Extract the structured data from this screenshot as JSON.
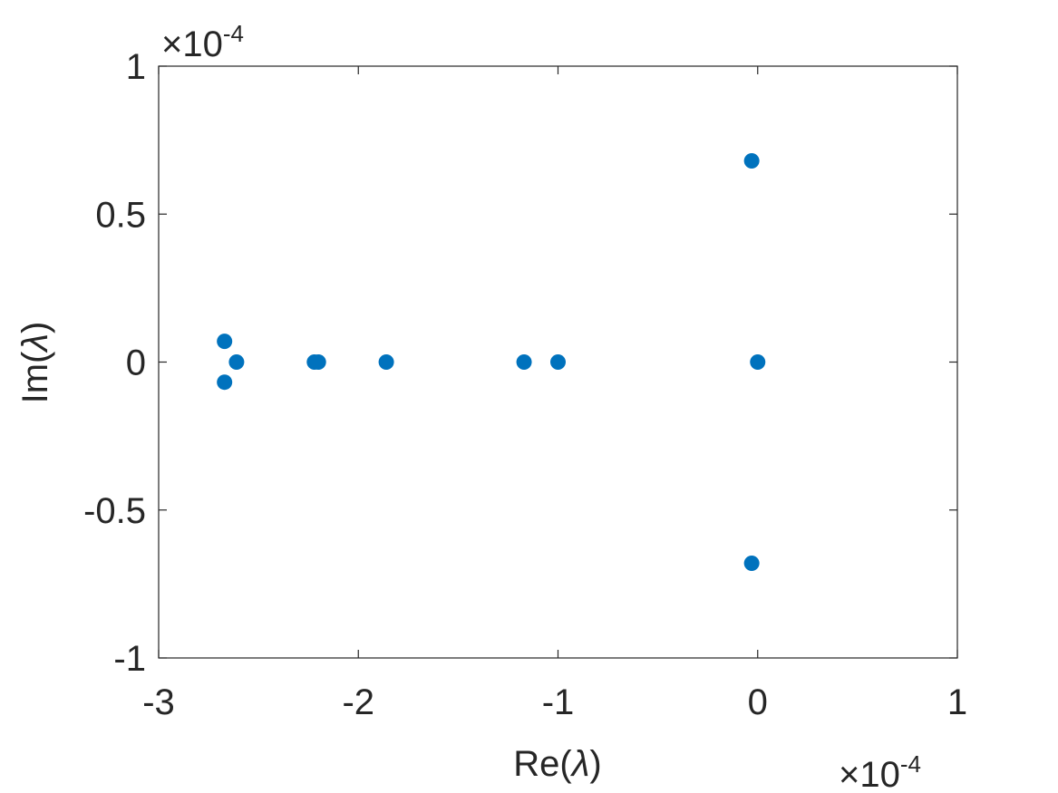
{
  "chart_data": {
    "type": "scatter",
    "xlabel_prefix": "Re(",
    "xlabel_symbol": "λ",
    "xlabel_suffix": ")",
    "ylabel_prefix": "Im(",
    "ylabel_symbol": "λ",
    "ylabel_suffix": ")",
    "xlim": [
      -3,
      1
    ],
    "ylim": [
      -1,
      1
    ],
    "x_ticks": [
      -3,
      -2,
      -1,
      0,
      1
    ],
    "x_tick_labels": [
      "-3",
      "-2",
      "-1",
      "0",
      "1"
    ],
    "y_ticks": [
      -1,
      -0.5,
      0,
      0.5,
      1
    ],
    "y_tick_labels": [
      "-1",
      "-0.5",
      "0",
      "0.5",
      "1"
    ],
    "x_multiplier": {
      "base": "×10",
      "exponent": "-4"
    },
    "y_multiplier": {
      "base": "×10",
      "exponent": "-4"
    },
    "grid": false,
    "box": true,
    "marker_color": "#0072BD",
    "axis_color": "#262626",
    "points": [
      {
        "x": -2.67,
        "y": 0.07
      },
      {
        "x": -2.67,
        "y": -0.068
      },
      {
        "x": -2.61,
        "y": 0.0
      },
      {
        "x": -2.22,
        "y": 0.0
      },
      {
        "x": -2.2,
        "y": 0.0
      },
      {
        "x": -1.86,
        "y": 0.0
      },
      {
        "x": -1.17,
        "y": 0.0
      },
      {
        "x": -1.0,
        "y": 0.0
      },
      {
        "x": -0.03,
        "y": 0.68
      },
      {
        "x": -0.03,
        "y": -0.68
      },
      {
        "x": 0.0,
        "y": 0.0
      }
    ]
  }
}
